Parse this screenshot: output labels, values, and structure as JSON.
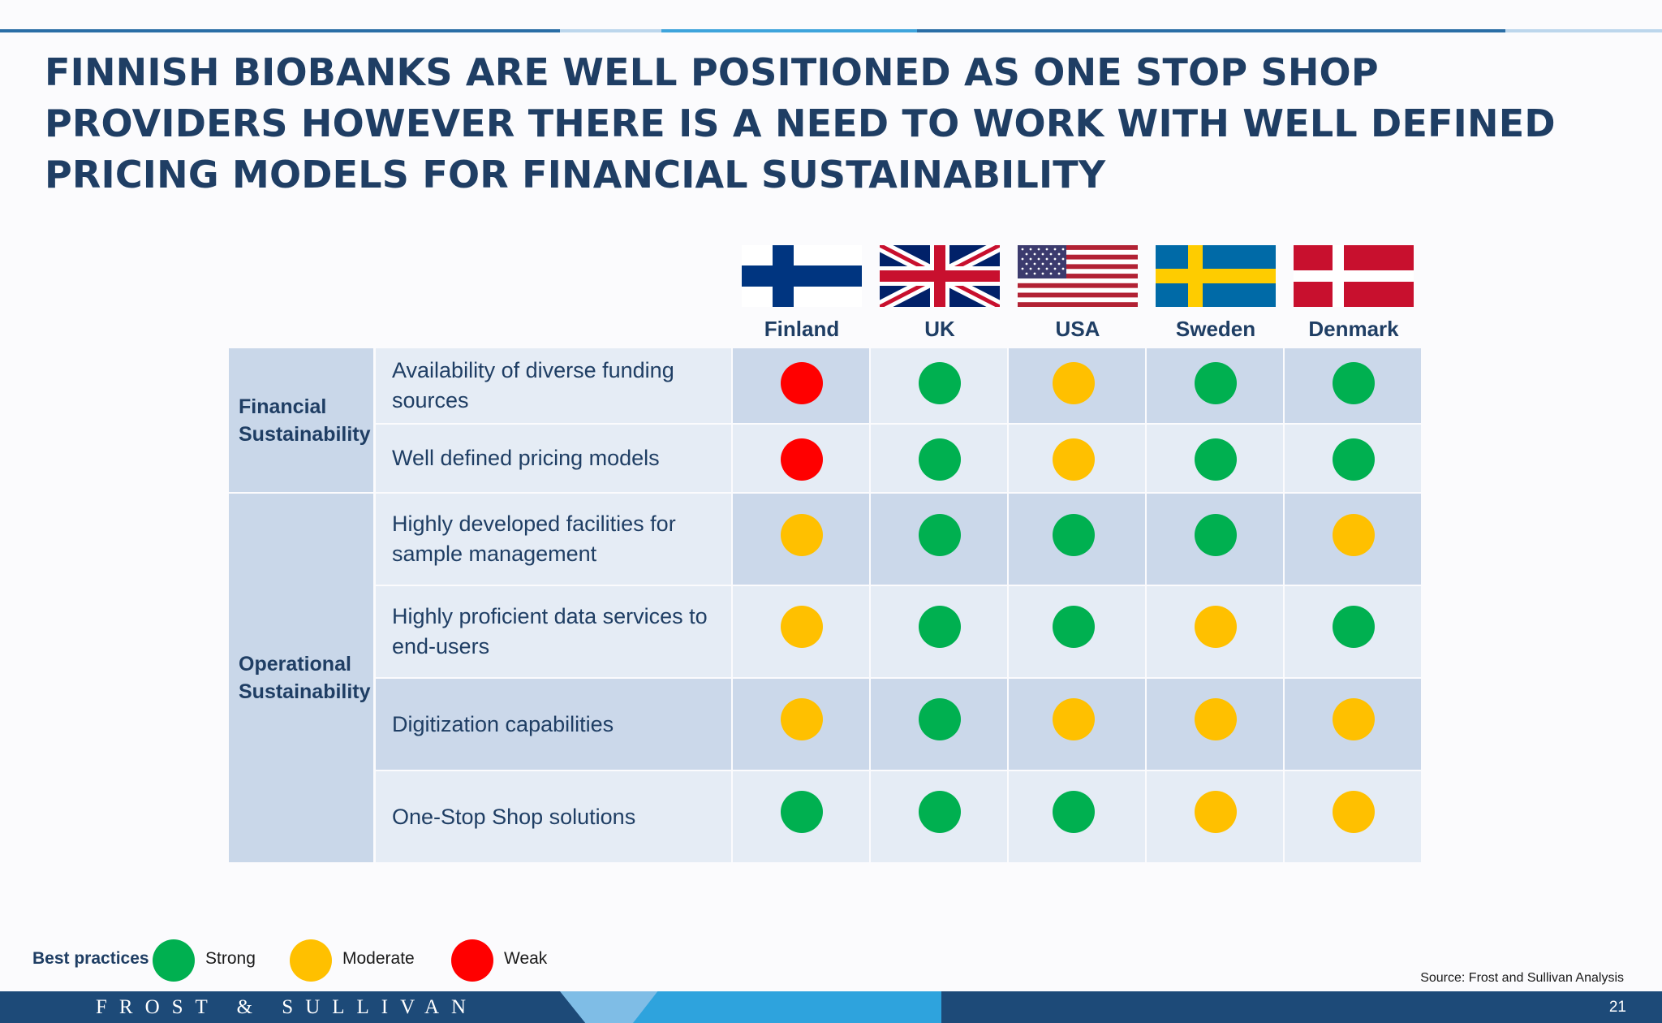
{
  "slide": {
    "title": "FINNISH BIOBANKS ARE WELL POSITIONED AS ONE STOP SHOP PROVIDERS HOWEVER THERE IS A NEED TO WORK WITH WELL DEFINED PRICING MODELS FOR FINANCIAL SUSTAINABILITY",
    "page_number": "21",
    "source": "Source: Frost and Sullivan Analysis",
    "brand": "FROST & SULLIVAN"
  },
  "colors": {
    "strong": "#00b050",
    "moderate": "#ffc000",
    "weak": "#ff0000",
    "title": "#1f3e64"
  },
  "countries": [
    {
      "name": "Finland",
      "flag": "finland-flag-icon"
    },
    {
      "name": "UK",
      "flag": "uk-flag-icon"
    },
    {
      "name": "USA",
      "flag": "usa-flag-icon"
    },
    {
      "name": "Sweden",
      "flag": "sweden-flag-icon"
    },
    {
      "name": "Denmark",
      "flag": "denmark-flag-icon"
    }
  ],
  "categories": [
    {
      "label": "Financial Sustainability"
    },
    {
      "label": "Operational Sustainability"
    }
  ],
  "rows": [
    {
      "criterion": "Availability of diverse funding sources",
      "ratings": [
        "weak",
        "strong",
        "moderate",
        "strong",
        "strong"
      ]
    },
    {
      "criterion": "Well defined pricing models",
      "ratings": [
        "weak",
        "strong",
        "moderate",
        "strong",
        "strong"
      ]
    },
    {
      "criterion": "Highly developed facilities for sample management",
      "ratings": [
        "moderate",
        "strong",
        "strong",
        "strong",
        "moderate"
      ]
    },
    {
      "criterion": "Highly proficient data services to end-users",
      "ratings": [
        "moderate",
        "strong",
        "strong",
        "moderate",
        "strong"
      ]
    },
    {
      "criterion": "Digitization capabilities",
      "ratings": [
        "moderate",
        "strong",
        "moderate",
        "moderate",
        "moderate"
      ]
    },
    {
      "criterion": "One-Stop Shop solutions",
      "ratings": [
        "strong",
        "strong",
        "strong",
        "moderate",
        "moderate"
      ]
    }
  ],
  "legend": {
    "title": "Best practices",
    "items": [
      {
        "key": "strong",
        "label": "Strong"
      },
      {
        "key": "moderate",
        "label": "Moderate"
      },
      {
        "key": "weak",
        "label": "Weak"
      }
    ]
  }
}
